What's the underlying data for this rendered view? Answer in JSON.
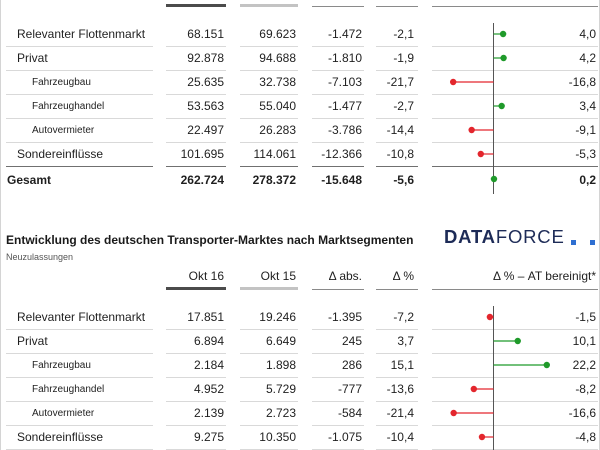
{
  "colors": {
    "text": "#1f1f1f",
    "positive": "#1f9a2a",
    "negative": "#e3262d",
    "current_period_bar": "#4b4b4b",
    "prior_period_bar": "#c3c3c3",
    "axis": "#555555",
    "logo_text": "#1d2b57",
    "logo_squares": "#2e6fd1"
  },
  "logo": {
    "word_bold": "DATA",
    "word_regular": "FORCE"
  },
  "chart_data": [
    {
      "type": "table",
      "rows": [
        {
          "label": "Relevanter Flottenmarkt",
          "okt16": "68.151",
          "okt15": "69.623",
          "delta_abs": "-1.472",
          "delta_pct": "-2,1",
          "delta_pct_at_adj": "4,0"
        },
        {
          "label": "Privat",
          "okt16": "92.878",
          "okt15": "94.688",
          "delta_abs": "-1.810",
          "delta_pct": "-1,9",
          "delta_pct_at_adj": "4,2",
          "children": [
            {
              "label": "Fahrzeugbau",
              "okt16": "25.635",
              "okt15": "32.738",
              "delta_abs": "-7.103",
              "delta_pct": "-21,7",
              "delta_pct_at_adj": "-16,8"
            },
            {
              "label": "Fahrzeughandel",
              "okt16": "53.563",
              "okt15": "55.040",
              "delta_abs": "-1.477",
              "delta_pct": "-2,7",
              "delta_pct_at_adj": "3,4"
            },
            {
              "label": "Autovermieter",
              "okt16": "22.497",
              "okt15": "26.283",
              "delta_abs": "-3.786",
              "delta_pct": "-14,4",
              "delta_pct_at_adj": "-9,1"
            }
          ]
        },
        {
          "label": "Sondereinflüsse",
          "okt16": "101.695",
          "okt15": "114.061",
          "delta_abs": "-12.366",
          "delta_pct": "-10,8",
          "delta_pct_at_adj": "-5,3"
        }
      ],
      "total": {
        "label": "Gesamt",
        "okt16": "262.724",
        "okt15": "278.372",
        "delta_abs": "-15.648",
        "delta_pct": "-5,6",
        "delta_pct_at_adj": "0,2"
      }
    },
    {
      "type": "table",
      "title": "Entwicklung des deutschen Transporter-Marktes nach Marktsegmenten",
      "subtitle": "Neuzulassungen",
      "columns": {
        "okt16": "Okt 16",
        "okt15": "Okt 15",
        "delta_abs": "Δ abs.",
        "delta_pct": "Δ %",
        "delta_pct_at_adj": "Δ % – AT bereinigt*"
      },
      "rows": [
        {
          "label": "Relevanter Flottenmarkt",
          "okt16": "17.851",
          "okt15": "19.246",
          "delta_abs": "-1.395",
          "delta_pct": "-7,2",
          "delta_pct_at_adj": "-1,5"
        },
        {
          "label": "Privat",
          "okt16": "6.894",
          "okt15": "6.649",
          "delta_abs": "245",
          "delta_pct": "3,7",
          "delta_pct_at_adj": "10,1",
          "children": [
            {
              "label": "Fahrzeugbau",
              "okt16": "2.184",
              "okt15": "1.898",
              "delta_abs": "286",
              "delta_pct": "15,1",
              "delta_pct_at_adj": "22,2"
            },
            {
              "label": "Fahrzeughandel",
              "okt16": "4.952",
              "okt15": "5.729",
              "delta_abs": "-777",
              "delta_pct": "-13,6",
              "delta_pct_at_adj": "-8,2"
            },
            {
              "label": "Autovermieter",
              "okt16": "2.139",
              "okt15": "2.723",
              "delta_abs": "-584",
              "delta_pct": "-21,4",
              "delta_pct_at_adj": "-16,6"
            }
          ]
        },
        {
          "label": "Sondereinflüsse",
          "okt16": "9.275",
          "okt15": "10.350",
          "delta_abs": "-1.075",
          "delta_pct": "-10,4",
          "delta_pct_at_adj": "-4,8"
        }
      ]
    }
  ]
}
